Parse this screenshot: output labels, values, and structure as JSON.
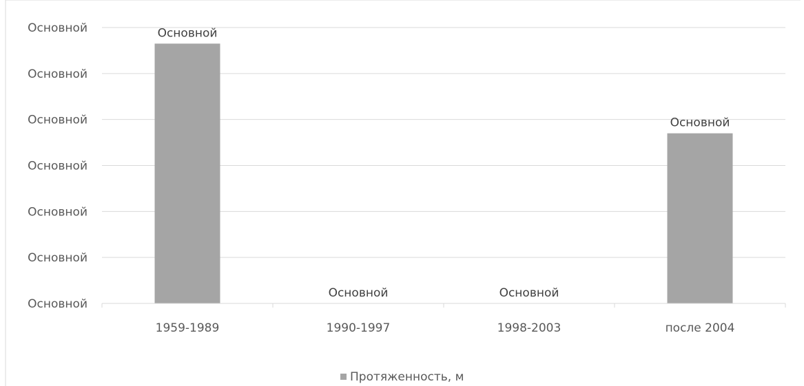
{
  "chart_data": {
    "type": "bar",
    "categories": [
      "1959-1989",
      "1990-1997",
      "1998-2003",
      "после 2004"
    ],
    "series": [
      {
        "name": "Протяженность, м",
        "values": [
          5.65,
          0,
          0,
          3.7
        ],
        "data_labels": [
          "Основной",
          "Основной",
          "Основной",
          "Основной"
        ],
        "color": "#a5a5a5"
      }
    ],
    "ylim": [
      0,
      6
    ],
    "y_tick_values": [
      0,
      1,
      2,
      3,
      4,
      5,
      6
    ],
    "y_tick_labels": [
      "Основной",
      "Основной",
      "Основной",
      "Основной",
      "Основной",
      "Основной",
      "Основной"
    ],
    "grid": true,
    "gridline_color": "#d9d9d9",
    "legend_position": "bottom"
  }
}
